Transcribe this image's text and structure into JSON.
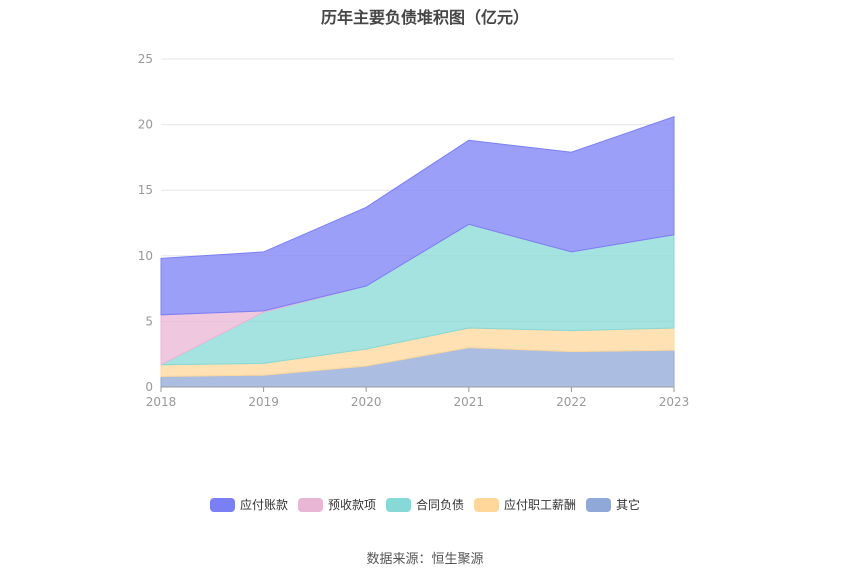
{
  "chart_data": {
    "type": "area",
    "stacked": true,
    "title": "历年主要负债堆积图（亿元）",
    "categories": [
      "2018",
      "2019",
      "2020",
      "2021",
      "2022",
      "2023"
    ],
    "ylim": [
      0,
      25
    ],
    "yticks": [
      "0",
      "5",
      "10",
      "15",
      "20",
      "25"
    ],
    "grid": true,
    "legend_position": "bottom",
    "series": [
      {
        "name": "其它",
        "color": "#8fa8d8",
        "values": [
          0.8,
          0.9,
          1.6,
          3.0,
          2.7,
          2.8
        ]
      },
      {
        "name": "应付职工薪酬",
        "color": "#ffd79b",
        "values": [
          0.9,
          0.9,
          1.3,
          1.5,
          1.6,
          1.7
        ]
      },
      {
        "name": "合同负债",
        "color": "#86d9d6",
        "values": [
          0.0,
          3.9,
          4.8,
          7.9,
          6.0,
          7.1
        ]
      },
      {
        "name": "预收款项",
        "color": "#eab6d6",
        "values": [
          3.8,
          0.1,
          0.0,
          0.0,
          0.0,
          0.0
        ]
      },
      {
        "name": "应付账款",
        "color": "#7b7ff5",
        "values": [
          4.3,
          4.5,
          6.0,
          6.4,
          7.6,
          9.0
        ]
      }
    ]
  },
  "legend_order": [
    "应付账款",
    "预收款项",
    "合同负债",
    "应付职工薪酬",
    "其它"
  ],
  "source_text": "数据来源：恒生聚源"
}
